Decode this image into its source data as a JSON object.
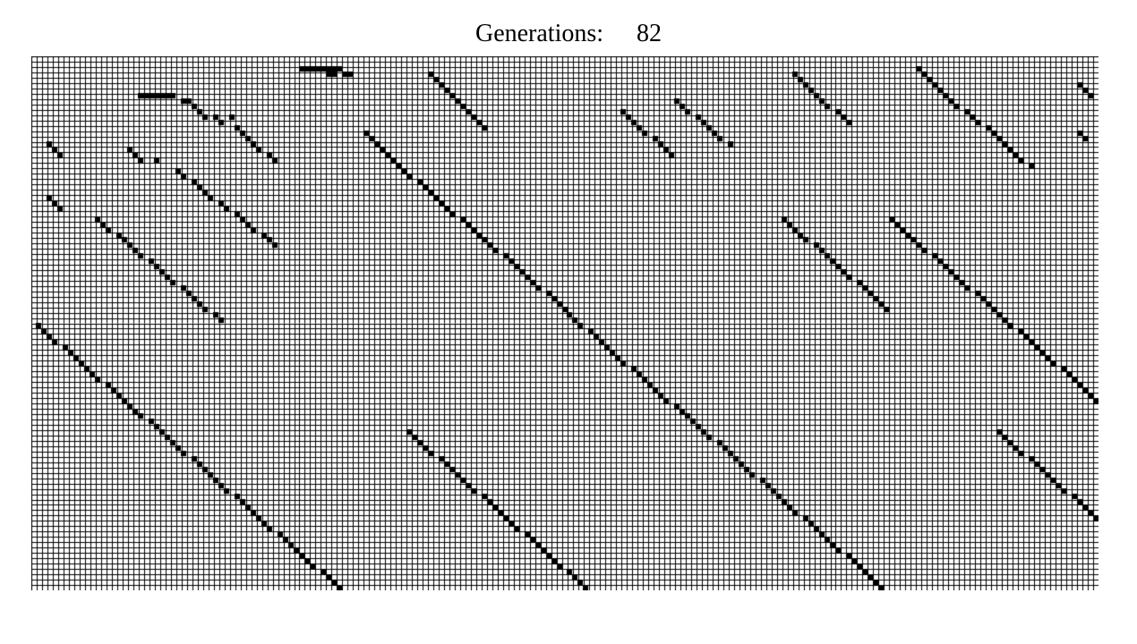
{
  "header": {
    "generations_label": "Generations:",
    "generation_count": "82"
  },
  "board": {
    "columns": 199,
    "rows": 100,
    "live_color": "#000000",
    "dead_color": "#ffffff",
    "grid_color": "#000000",
    "live_cells": [
      [
        50,
        2
      ],
      [
        51,
        2
      ],
      [
        52,
        2
      ],
      [
        53,
        2
      ],
      [
        54,
        2
      ],
      [
        55,
        2
      ],
      [
        56,
        2
      ],
      [
        57,
        2
      ],
      [
        55,
        3
      ],
      [
        56,
        3
      ],
      [
        58,
        3
      ],
      [
        59,
        3
      ],
      [
        20,
        7
      ],
      [
        21,
        7
      ],
      [
        22,
        7
      ],
      [
        23,
        7
      ],
      [
        24,
        7
      ],
      [
        25,
        7
      ],
      [
        26,
        7
      ],
      [
        28,
        8
      ],
      [
        29,
        8
      ],
      [
        30,
        9
      ],
      [
        31,
        10
      ],
      [
        32,
        11
      ],
      [
        34,
        11
      ],
      [
        35,
        12
      ],
      [
        37,
        11
      ],
      [
        38,
        13
      ],
      [
        39,
        14
      ],
      [
        40,
        15
      ],
      [
        41,
        16
      ],
      [
        42,
        17
      ],
      [
        44,
        18
      ],
      [
        45,
        19
      ],
      [
        74,
        3
      ],
      [
        75,
        4
      ],
      [
        76,
        5
      ],
      [
        77,
        6
      ],
      [
        78,
        7
      ],
      [
        79,
        8
      ],
      [
        80,
        9
      ],
      [
        81,
        10
      ],
      [
        82,
        11
      ],
      [
        83,
        12
      ],
      [
        84,
        13
      ],
      [
        120,
        8
      ],
      [
        121,
        9
      ],
      [
        122,
        10
      ],
      [
        124,
        11
      ],
      [
        125,
        12
      ],
      [
        126,
        13
      ],
      [
        127,
        14
      ],
      [
        128,
        15
      ],
      [
        130,
        16
      ],
      [
        142,
        3
      ],
      [
        143,
        4
      ],
      [
        144,
        5
      ],
      [
        145,
        6
      ],
      [
        146,
        7
      ],
      [
        147,
        8
      ],
      [
        148,
        9
      ],
      [
        150,
        10
      ],
      [
        151,
        11
      ],
      [
        152,
        12
      ],
      [
        165,
        2
      ],
      [
        166,
        3
      ],
      [
        167,
        4
      ],
      [
        168,
        5
      ],
      [
        169,
        6
      ],
      [
        170,
        7
      ],
      [
        171,
        8
      ],
      [
        172,
        9
      ],
      [
        174,
        10
      ],
      [
        175,
        11
      ],
      [
        176,
        12
      ],
      [
        178,
        13
      ],
      [
        179,
        14
      ],
      [
        180,
        15
      ],
      [
        181,
        16
      ],
      [
        182,
        17
      ],
      [
        183,
        18
      ],
      [
        184,
        19
      ],
      [
        186,
        20
      ],
      [
        195,
        5
      ],
      [
        196,
        6
      ],
      [
        197,
        7
      ],
      [
        195,
        14
      ],
      [
        196,
        15
      ],
      [
        3,
        16
      ],
      [
        4,
        17
      ],
      [
        5,
        18
      ],
      [
        18,
        17
      ],
      [
        19,
        18
      ],
      [
        20,
        19
      ],
      [
        23,
        19
      ],
      [
        27,
        21
      ],
      [
        28,
        22
      ],
      [
        30,
        23
      ],
      [
        31,
        24
      ],
      [
        32,
        25
      ],
      [
        33,
        26
      ],
      [
        35,
        27
      ],
      [
        36,
        28
      ],
      [
        38,
        29
      ],
      [
        39,
        30
      ],
      [
        40,
        31
      ],
      [
        41,
        32
      ],
      [
        43,
        33
      ],
      [
        44,
        34
      ],
      [
        45,
        35
      ],
      [
        3,
        26
      ],
      [
        4,
        27
      ],
      [
        5,
        28
      ],
      [
        12,
        30
      ],
      [
        13,
        31
      ],
      [
        14,
        32
      ],
      [
        16,
        33
      ],
      [
        17,
        34
      ],
      [
        18,
        35
      ],
      [
        19,
        36
      ],
      [
        20,
        37
      ],
      [
        22,
        38
      ],
      [
        23,
        39
      ],
      [
        24,
        40
      ],
      [
        25,
        41
      ],
      [
        26,
        42
      ],
      [
        28,
        43
      ],
      [
        29,
        44
      ],
      [
        30,
        45
      ],
      [
        31,
        46
      ],
      [
        32,
        47
      ],
      [
        34,
        48
      ],
      [
        35,
        49
      ],
      [
        62,
        14
      ],
      [
        63,
        15
      ],
      [
        64,
        16
      ],
      [
        65,
        17
      ],
      [
        66,
        18
      ],
      [
        67,
        19
      ],
      [
        68,
        20
      ],
      [
        69,
        21
      ],
      [
        70,
        22
      ],
      [
        72,
        23
      ],
      [
        73,
        24
      ],
      [
        74,
        25
      ],
      [
        75,
        26
      ],
      [
        76,
        27
      ],
      [
        77,
        28
      ],
      [
        78,
        29
      ],
      [
        80,
        30
      ],
      [
        81,
        31
      ],
      [
        82,
        32
      ],
      [
        83,
        33
      ],
      [
        84,
        34
      ],
      [
        85,
        35
      ],
      [
        86,
        36
      ],
      [
        88,
        37
      ],
      [
        89,
        38
      ],
      [
        90,
        39
      ],
      [
        91,
        40
      ],
      [
        92,
        41
      ],
      [
        93,
        42
      ],
      [
        94,
        43
      ],
      [
        96,
        44
      ],
      [
        97,
        45
      ],
      [
        98,
        46
      ],
      [
        99,
        47
      ],
      [
        100,
        48
      ],
      [
        101,
        49
      ],
      [
        102,
        50
      ],
      [
        104,
        51
      ],
      [
        105,
        52
      ],
      [
        106,
        53
      ],
      [
        107,
        54
      ],
      [
        108,
        55
      ],
      [
        109,
        56
      ],
      [
        110,
        57
      ],
      [
        112,
        58
      ],
      [
        113,
        59
      ],
      [
        114,
        60
      ],
      [
        115,
        61
      ],
      [
        116,
        62
      ],
      [
        117,
        63
      ],
      [
        118,
        64
      ],
      [
        120,
        65
      ],
      [
        121,
        66
      ],
      [
        122,
        67
      ],
      [
        123,
        68
      ],
      [
        124,
        69
      ],
      [
        125,
        70
      ],
      [
        126,
        71
      ],
      [
        128,
        72
      ],
      [
        129,
        73
      ],
      [
        130,
        74
      ],
      [
        131,
        75
      ],
      [
        132,
        76
      ],
      [
        133,
        77
      ],
      [
        134,
        78
      ],
      [
        136,
        79
      ],
      [
        137,
        80
      ],
      [
        138,
        81
      ],
      [
        139,
        82
      ],
      [
        140,
        83
      ],
      [
        141,
        84
      ],
      [
        142,
        85
      ],
      [
        144,
        86
      ],
      [
        145,
        87
      ],
      [
        146,
        88
      ],
      [
        147,
        89
      ],
      [
        148,
        90
      ],
      [
        149,
        91
      ],
      [
        150,
        92
      ],
      [
        152,
        93
      ],
      [
        153,
        94
      ],
      [
        154,
        95
      ],
      [
        155,
        96
      ],
      [
        156,
        97
      ],
      [
        157,
        98
      ],
      [
        158,
        99
      ],
      [
        1,
        50
      ],
      [
        2,
        51
      ],
      [
        3,
        52
      ],
      [
        4,
        53
      ],
      [
        6,
        54
      ],
      [
        7,
        55
      ],
      [
        8,
        56
      ],
      [
        9,
        57
      ],
      [
        10,
        58
      ],
      [
        11,
        59
      ],
      [
        12,
        60
      ],
      [
        14,
        61
      ],
      [
        15,
        62
      ],
      [
        16,
        63
      ],
      [
        17,
        64
      ],
      [
        18,
        65
      ],
      [
        19,
        66
      ],
      [
        20,
        67
      ],
      [
        22,
        68
      ],
      [
        23,
        69
      ],
      [
        24,
        70
      ],
      [
        25,
        71
      ],
      [
        26,
        72
      ],
      [
        27,
        73
      ],
      [
        28,
        74
      ],
      [
        30,
        75
      ],
      [
        31,
        76
      ],
      [
        32,
        77
      ],
      [
        33,
        78
      ],
      [
        34,
        79
      ],
      [
        35,
        80
      ],
      [
        36,
        81
      ],
      [
        38,
        82
      ],
      [
        39,
        83
      ],
      [
        40,
        84
      ],
      [
        41,
        85
      ],
      [
        42,
        86
      ],
      [
        43,
        87
      ],
      [
        44,
        88
      ],
      [
        46,
        89
      ],
      [
        47,
        90
      ],
      [
        48,
        91
      ],
      [
        49,
        92
      ],
      [
        50,
        93
      ],
      [
        51,
        94
      ],
      [
        52,
        95
      ],
      [
        54,
        96
      ],
      [
        55,
        97
      ],
      [
        56,
        98
      ],
      [
        57,
        99
      ],
      [
        160,
        30
      ],
      [
        161,
        31
      ],
      [
        162,
        32
      ],
      [
        163,
        33
      ],
      [
        164,
        34
      ],
      [
        165,
        35
      ],
      [
        166,
        36
      ],
      [
        168,
        37
      ],
      [
        169,
        38
      ],
      [
        170,
        39
      ],
      [
        171,
        40
      ],
      [
        172,
        41
      ],
      [
        173,
        42
      ],
      [
        174,
        43
      ],
      [
        176,
        44
      ],
      [
        177,
        45
      ],
      [
        178,
        46
      ],
      [
        179,
        47
      ],
      [
        180,
        48
      ],
      [
        181,
        49
      ],
      [
        182,
        50
      ],
      [
        184,
        51
      ],
      [
        185,
        52
      ],
      [
        186,
        53
      ],
      [
        187,
        54
      ],
      [
        188,
        55
      ],
      [
        189,
        56
      ],
      [
        190,
        57
      ],
      [
        192,
        58
      ],
      [
        193,
        59
      ],
      [
        194,
        60
      ],
      [
        195,
        61
      ],
      [
        196,
        62
      ],
      [
        197,
        63
      ],
      [
        198,
        64
      ],
      [
        70,
        70
      ],
      [
        71,
        71
      ],
      [
        72,
        72
      ],
      [
        73,
        73
      ],
      [
        74,
        74
      ],
      [
        76,
        75
      ],
      [
        77,
        76
      ],
      [
        78,
        77
      ],
      [
        79,
        78
      ],
      [
        80,
        79
      ],
      [
        81,
        80
      ],
      [
        82,
        81
      ],
      [
        84,
        82
      ],
      [
        85,
        83
      ],
      [
        86,
        84
      ],
      [
        87,
        85
      ],
      [
        88,
        86
      ],
      [
        89,
        87
      ],
      [
        90,
        88
      ],
      [
        92,
        89
      ],
      [
        93,
        90
      ],
      [
        94,
        91
      ],
      [
        95,
        92
      ],
      [
        96,
        93
      ],
      [
        97,
        94
      ],
      [
        98,
        95
      ],
      [
        100,
        96
      ],
      [
        101,
        97
      ],
      [
        102,
        98
      ],
      [
        103,
        99
      ],
      [
        110,
        10
      ],
      [
        111,
        11
      ],
      [
        112,
        12
      ],
      [
        113,
        13
      ],
      [
        114,
        14
      ],
      [
        116,
        15
      ],
      [
        117,
        16
      ],
      [
        118,
        17
      ],
      [
        119,
        18
      ],
      [
        140,
        30
      ],
      [
        141,
        31
      ],
      [
        142,
        32
      ],
      [
        143,
        33
      ],
      [
        144,
        34
      ],
      [
        146,
        35
      ],
      [
        147,
        36
      ],
      [
        148,
        37
      ],
      [
        149,
        38
      ],
      [
        150,
        39
      ],
      [
        151,
        40
      ],
      [
        152,
        41
      ],
      [
        154,
        42
      ],
      [
        155,
        43
      ],
      [
        156,
        44
      ],
      [
        157,
        45
      ],
      [
        158,
        46
      ],
      [
        159,
        47
      ],
      [
        180,
        70
      ],
      [
        181,
        71
      ],
      [
        182,
        72
      ],
      [
        183,
        73
      ],
      [
        184,
        74
      ],
      [
        186,
        75
      ],
      [
        187,
        76
      ],
      [
        188,
        77
      ],
      [
        189,
        78
      ],
      [
        190,
        79
      ],
      [
        191,
        80
      ],
      [
        192,
        81
      ],
      [
        194,
        82
      ],
      [
        195,
        83
      ],
      [
        196,
        84
      ],
      [
        197,
        85
      ],
      [
        198,
        86
      ]
    ]
  }
}
